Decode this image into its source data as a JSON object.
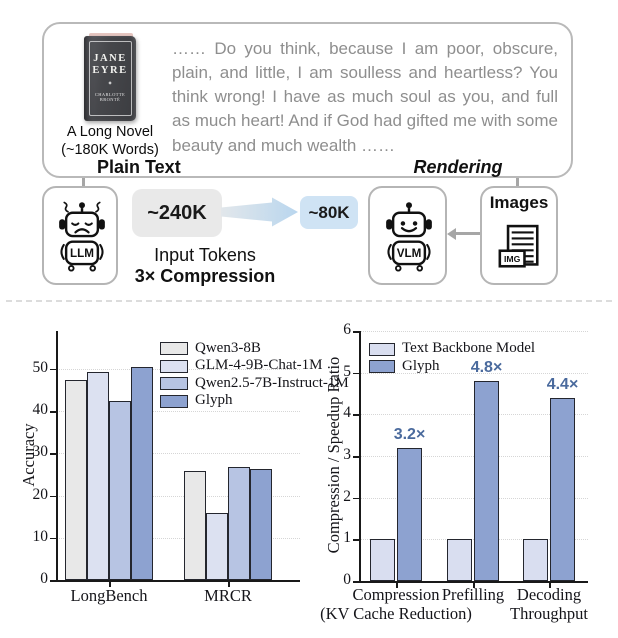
{
  "diagram": {
    "novel": {
      "book_title": [
        "JANE",
        "EYRE"
      ],
      "book_author": "CHARLOTTE BRONTË",
      "caption": [
        "A Long Novel",
        "(~180K Words)"
      ],
      "excerpt": "…… Do you think, because I am poor, obscure, plain, and little, I am soulless and heartless? You think wrong! I have as much soul as you, and full as much heart! And if God had gifted me with some beauty and much wealth ……"
    },
    "labels": {
      "plain_text": "Plain Text",
      "rendering": "Rendering",
      "tokens_before": "~240K",
      "tokens_after": "~80K",
      "input_tokens": "Input Tokens",
      "compression": "3× Compression",
      "llm": "LLM",
      "vlm": "VLM",
      "images": "Images",
      "img_icon": "IMG"
    },
    "colors": {
      "tokens_before_bg": "#e9e9e9",
      "tokens_after_bg": "#cfe3f4",
      "flow_arrow_blue": "#c3d9ec",
      "box_border": "#b5b5b5"
    }
  },
  "chart_data": [
    {
      "type": "bar",
      "title": "",
      "xlabel": "",
      "ylabel": "Accuracy",
      "categories": [
        "LongBench",
        "MRCR"
      ],
      "series": [
        {
          "name": "Qwen3-8B",
          "color": "#e8e8e8",
          "values": [
            47.5,
            25.8
          ]
        },
        {
          "name": "GLM-4-9B-Chat-1M",
          "color": "#dce1f1",
          "values": [
            49.2,
            15.8
          ]
        },
        {
          "name": "Qwen2.5-7B-Instruct-1M",
          "color": "#b7c4e3",
          "values": [
            42.4,
            26.8
          ]
        },
        {
          "name": "Glyph",
          "color": "#8da2d0",
          "values": [
            50.5,
            26.3
          ]
        }
      ],
      "ylim": [
        0,
        59
      ],
      "yticks": [
        0,
        10,
        20,
        30,
        40,
        50
      ],
      "grid": "horizontal-dotted",
      "legend_position": "upper-right"
    },
    {
      "type": "bar",
      "title": "",
      "xlabel": "",
      "ylabel": "Compression / Speedup Ratio",
      "categories": [
        "Compression\n(KV Cache Reduction)",
        "Prefilling",
        "Decoding\nThroughput"
      ],
      "series": [
        {
          "name": "Text Backbone Model",
          "color": "#d9def0",
          "values": [
            1,
            1,
            1
          ]
        },
        {
          "name": "Glyph",
          "color": "#8da2d0",
          "values": [
            3.2,
            4.8,
            4.4
          ]
        }
      ],
      "annotations": [
        "3.2×",
        "4.8×",
        "4.4×"
      ],
      "annotation_color": "#4a6a9d",
      "ylim": [
        0,
        6
      ],
      "yticks": [
        0,
        1,
        2,
        3,
        4,
        5,
        6
      ],
      "grid": "horizontal-dotted",
      "legend_position": "upper-left"
    }
  ]
}
